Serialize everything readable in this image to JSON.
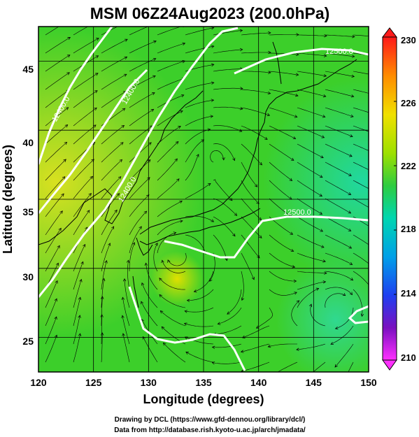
{
  "title": "MSM 06Z24Aug2023 (200.0hPa)",
  "map": {
    "xlabel": "Longitude (degrees)",
    "ylabel": "Latitude  (degrees)",
    "xlim": [
      120,
      150
    ],
    "ylim": [
      22.5,
      47.5
    ],
    "x_ticks": [
      "120",
      "125",
      "130",
      "135",
      "140",
      "145",
      "150"
    ],
    "y_ticks": [
      "25",
      "30",
      "35",
      "40",
      "45"
    ],
    "contour_labels": [
      "12500.0",
      "12500.0",
      "12400.0",
      "12400.0",
      "12400.0"
    ],
    "colors": {
      "background_main": "#3ccf2a",
      "coastline": "#000000",
      "contour": "#ffffff",
      "streamline": "#000000"
    }
  },
  "colorbar": {
    "tick_labels": [
      "230",
      "226",
      "222",
      "218",
      "214",
      "210"
    ],
    "colors": [
      "#ff1a1a",
      "#ff8c00",
      "#f0e000",
      "#9de000",
      "#2ecc40",
      "#00d6b0",
      "#00a0e8",
      "#1f3ff0",
      "#7a10c0",
      "#ff30ff"
    ]
  },
  "credits": {
    "line1": "Drawing by DCL (https://www.gfd-dennou.org/library/dcl/)",
    "line2": "Data from http://database.rish.kyoto-u.ac.jp/arch/jmadata/"
  }
}
